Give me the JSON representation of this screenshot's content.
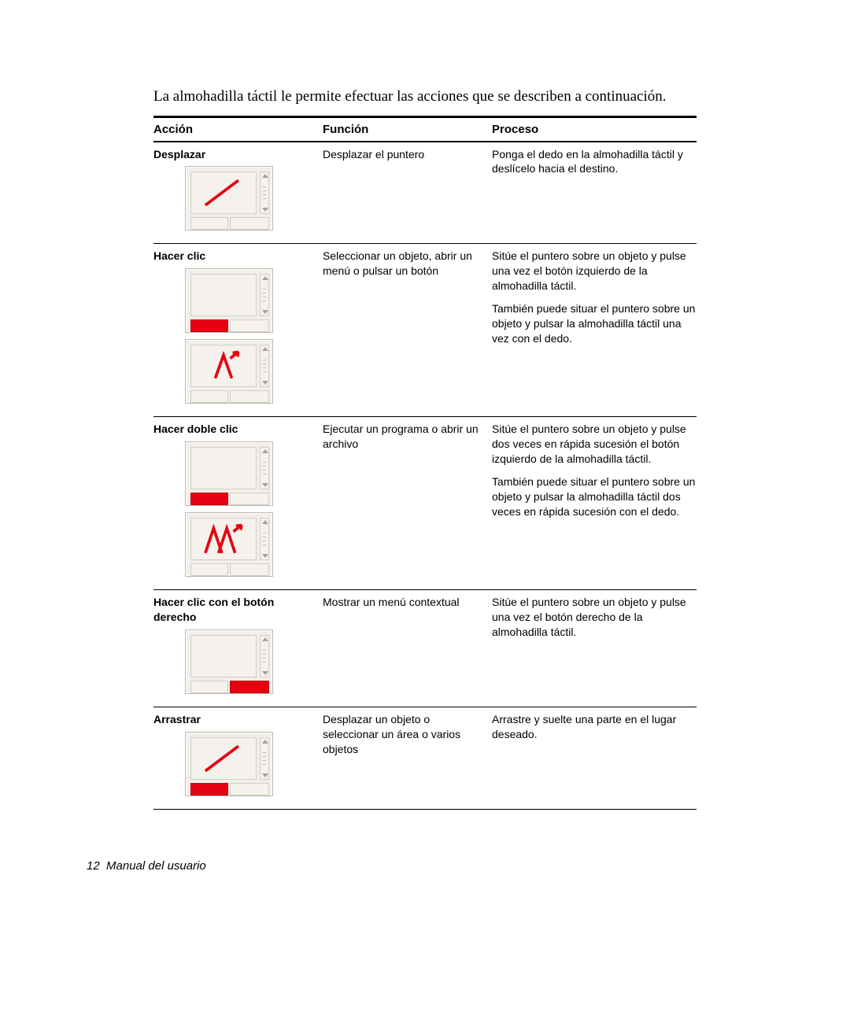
{
  "intro": "La almohadilla táctil le permite efectuar las acciones que se describen a continuación.",
  "headers": {
    "accion": "Acción",
    "funcion": "Función",
    "proceso": "Proceso"
  },
  "rows": [
    {
      "accion": "Desplazar",
      "diagrams": [
        {
          "leftBtn": false,
          "rightBtn": false,
          "gesture": "arrow"
        }
      ],
      "funcion": "Desplazar el puntero",
      "proceso": [
        "Ponga el dedo en la almohadilla táctil y deslícelo hacia el destino."
      ]
    },
    {
      "accion": "Hacer clic",
      "diagrams": [
        {
          "leftBtn": true,
          "rightBtn": false,
          "gesture": "none"
        },
        {
          "leftBtn": false,
          "rightBtn": false,
          "gesture": "tap"
        }
      ],
      "funcion": "Seleccionar un objeto, abrir un menú o pulsar un  botón",
      "proceso": [
        "Sitúe el puntero sobre un objeto y pulse una vez el botón izquierdo de la almohadilla táctil.",
        "También puede situar el puntero sobre un objeto y pulsar la almohadilla táctil una vez con el dedo."
      ]
    },
    {
      "accion": "Hacer doble clic",
      "diagrams": [
        {
          "leftBtn": true,
          "rightBtn": false,
          "gesture": "none"
        },
        {
          "leftBtn": false,
          "rightBtn": false,
          "gesture": "doubletap"
        }
      ],
      "funcion": "Ejecutar un programa o abrir un archivo",
      "proceso": [
        "Sitúe el puntero sobre un objeto y pulse dos veces en rápida sucesión el botón izquierdo de la almohadilla táctil.",
        "También puede situar el puntero sobre un objeto y pulsar la almohadilla táctil dos veces en rápida sucesión con el dedo."
      ]
    },
    {
      "accion": "Hacer clic con el botón derecho",
      "diagrams": [
        {
          "leftBtn": false,
          "rightBtn": true,
          "gesture": "none"
        }
      ],
      "funcion": "Mostrar un menú contextual",
      "proceso": [
        "Sitúe el puntero sobre un objeto y pulse una vez el botón derecho de la almohadilla táctil."
      ]
    },
    {
      "accion": "Arrastrar",
      "diagrams": [
        {
          "leftBtn": true,
          "rightBtn": false,
          "gesture": "arrow"
        }
      ],
      "funcion": "Desplazar un objeto o seleccionar un área o varios objetos",
      "proceso": [
        "Arrastre y suelte una parte en el lugar deseado."
      ]
    }
  ],
  "footer": {
    "page": "12",
    "label": "Manual del usuario"
  },
  "style": {
    "touchpad_bg": "#f2efea",
    "touchpad_border": "#bbb7ae",
    "highlight": "#e60012",
    "arrow_color": "#e60012",
    "text_color": "#000000",
    "intro_font": "serif",
    "body_font": "sans-serif"
  }
}
